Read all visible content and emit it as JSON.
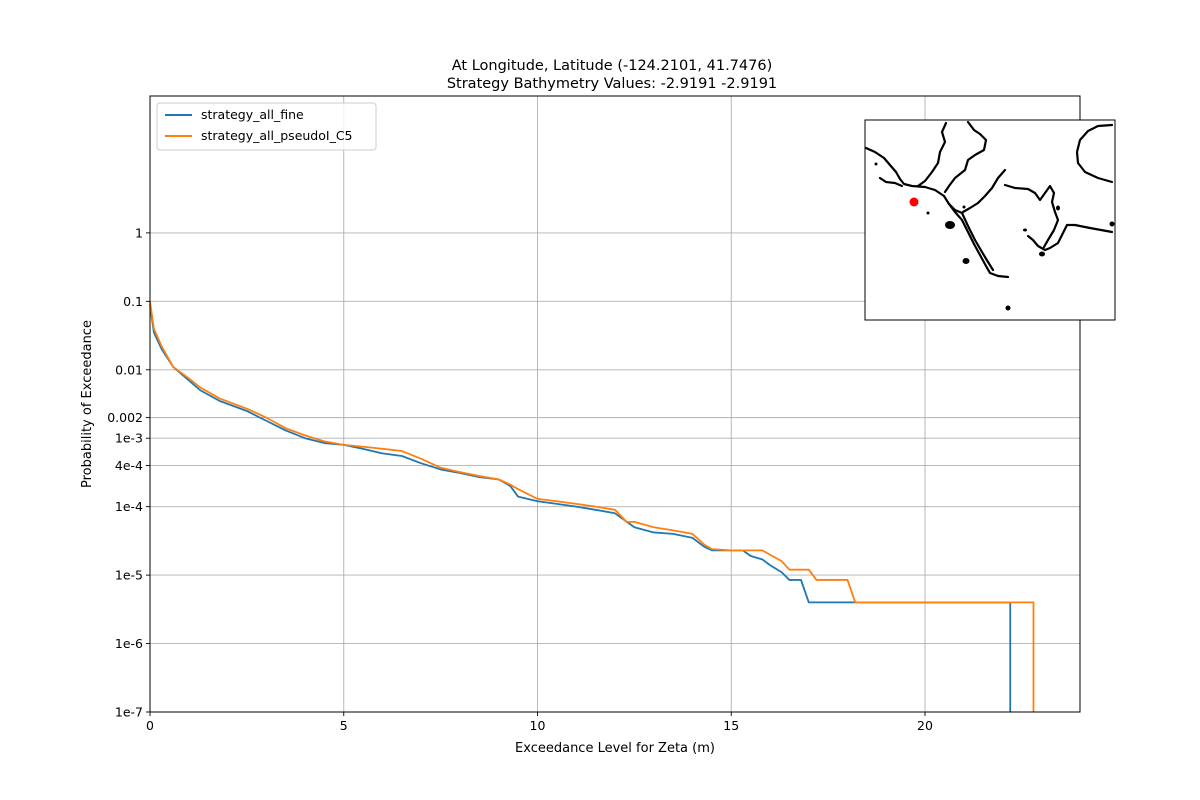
{
  "chart_data": {
    "type": "line",
    "title": "At Longitude, Latitude (-124.2101,  41.7476)",
    "subtitle": "Strategy Bathymetry Values:   -2.9191   -2.9191",
    "xlabel": "Exceedance Level for Zeta (m)",
    "ylabel": "Probability of Exceedance",
    "xlim": [
      0,
      24
    ],
    "ylim": [
      1e-07,
      100
    ],
    "yscale": "log",
    "grid": true,
    "legend_position": "upper-left",
    "x_ticks": [
      {
        "value": 0,
        "label": "0"
      },
      {
        "value": 5,
        "label": "5"
      },
      {
        "value": 10,
        "label": "10"
      },
      {
        "value": 15,
        "label": "15"
      },
      {
        "value": 20,
        "label": "20"
      }
    ],
    "y_ticks": [
      {
        "value": 1,
        "label": "1"
      },
      {
        "value": 0.1,
        "label": "0.1"
      },
      {
        "value": 0.01,
        "label": "0.01"
      },
      {
        "value": 0.002,
        "label": "0.002"
      },
      {
        "value": 0.001,
        "label": "1e-3"
      },
      {
        "value": 0.0004,
        "label": "4e-4"
      },
      {
        "value": 0.0001,
        "label": "1e-4"
      },
      {
        "value": 1e-05,
        "label": "1e-5"
      },
      {
        "value": 1e-06,
        "label": "1e-6"
      },
      {
        "value": 1e-07,
        "label": "1e-7"
      }
    ],
    "series": [
      {
        "name": "strategy_all_fine",
        "color": "#1f77b4",
        "points": [
          [
            0,
            0.09
          ],
          [
            0.1,
            0.035
          ],
          [
            0.3,
            0.02
          ],
          [
            0.6,
            0.011
          ],
          [
            1.0,
            0.007
          ],
          [
            1.3,
            0.005
          ],
          [
            1.8,
            0.0035
          ],
          [
            2.5,
            0.0025
          ],
          [
            3.0,
            0.0018
          ],
          [
            3.5,
            0.0013
          ],
          [
            4.0,
            0.001
          ],
          [
            4.5,
            0.00085
          ],
          [
            5.0,
            0.0008
          ],
          [
            5.5,
            0.0007
          ],
          [
            6.0,
            0.0006
          ],
          [
            6.5,
            0.00055
          ],
          [
            7.0,
            0.00043
          ],
          [
            7.5,
            0.00035
          ],
          [
            8.0,
            0.00031
          ],
          [
            8.5,
            0.00027
          ],
          [
            9.0,
            0.00025
          ],
          [
            9.3,
            0.0002
          ],
          [
            9.5,
            0.00014
          ],
          [
            10.0,
            0.00012
          ],
          [
            10.5,
            0.00011
          ],
          [
            11.0,
            0.0001
          ],
          [
            11.5,
            9e-05
          ],
          [
            12.0,
            8e-05
          ],
          [
            12.5,
            5e-05
          ],
          [
            13.0,
            4.2e-05
          ],
          [
            13.5,
            4e-05
          ],
          [
            14.0,
            3.5e-05
          ],
          [
            14.3,
            2.6e-05
          ],
          [
            14.5,
            2.3e-05
          ],
          [
            15.0,
            2.3e-05
          ],
          [
            15.3,
            2.3e-05
          ],
          [
            15.5,
            1.9e-05
          ],
          [
            15.8,
            1.7e-05
          ],
          [
            16.0,
            1.4e-05
          ],
          [
            16.3,
            1.1e-05
          ],
          [
            16.5,
            8.5e-06
          ],
          [
            16.8,
            8.5e-06
          ],
          [
            17.0,
            4e-06
          ],
          [
            18.0,
            4e-06
          ],
          [
            20.0,
            4e-06
          ],
          [
            22.2,
            4e-06
          ],
          [
            22.2,
            1e-07
          ]
        ]
      },
      {
        "name": "strategy_all_pseudoI_C5",
        "color": "#ff7f0e",
        "points": [
          [
            0,
            0.1
          ],
          [
            0.1,
            0.04
          ],
          [
            0.3,
            0.022
          ],
          [
            0.6,
            0.011
          ],
          [
            1.0,
            0.0075
          ],
          [
            1.3,
            0.0055
          ],
          [
            1.8,
            0.0038
          ],
          [
            2.5,
            0.0027
          ],
          [
            3.0,
            0.002
          ],
          [
            3.5,
            0.0014
          ],
          [
            4.0,
            0.0011
          ],
          [
            4.5,
            0.0009
          ],
          [
            5.0,
            0.0008
          ],
          [
            5.5,
            0.00075
          ],
          [
            6.0,
            0.0007
          ],
          [
            6.5,
            0.00065
          ],
          [
            7.0,
            0.0005
          ],
          [
            7.5,
            0.00037
          ],
          [
            8.0,
            0.00032
          ],
          [
            8.5,
            0.00028
          ],
          [
            9.0,
            0.00025
          ],
          [
            9.3,
            0.00021
          ],
          [
            9.5,
            0.00018
          ],
          [
            10.0,
            0.00013
          ],
          [
            10.5,
            0.00012
          ],
          [
            11.0,
            0.00011
          ],
          [
            11.5,
            0.0001
          ],
          [
            12.0,
            9e-05
          ],
          [
            12.3,
            6e-05
          ],
          [
            12.5,
            6e-05
          ],
          [
            13.0,
            5e-05
          ],
          [
            13.5,
            4.5e-05
          ],
          [
            14.0,
            4e-05
          ],
          [
            14.3,
            2.8e-05
          ],
          [
            14.5,
            2.4e-05
          ],
          [
            15.0,
            2.3e-05
          ],
          [
            15.5,
            2.3e-05
          ],
          [
            15.8,
            2.3e-05
          ],
          [
            16.3,
            1.6e-05
          ],
          [
            16.5,
            1.2e-05
          ],
          [
            17.0,
            1.2e-05
          ],
          [
            17.2,
            8.5e-06
          ],
          [
            18.0,
            8.5e-06
          ],
          [
            18.2,
            4e-06
          ],
          [
            20.0,
            4e-06
          ],
          [
            22.8,
            4e-06
          ],
          [
            22.8,
            1e-07
          ]
        ]
      }
    ]
  }
}
